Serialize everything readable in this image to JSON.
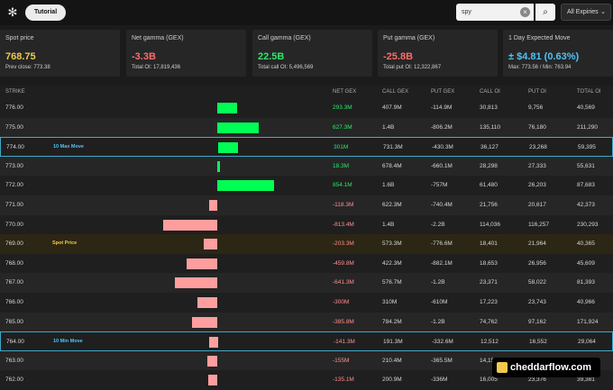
{
  "toolbar": {
    "logo_icon": "gear-icon",
    "tutorial_label": "Tutorial",
    "search_value": "spy",
    "expiry_label": "All Expiries"
  },
  "cards": [
    {
      "label": "Spot price",
      "value": "768.75",
      "sub": "Prev close: 773.38",
      "color": "#f2c94c"
    },
    {
      "label": "Net gamma (GEX)",
      "value": "-3.3B",
      "sub": "Total OI: 17,819,436",
      "color": "#ff6b6b"
    },
    {
      "label": "Call gamma (GEX)",
      "value": "22.5B",
      "sub": "Total call OI: 5,496,569",
      "color": "#2ee66b"
    },
    {
      "label": "Put gamma (GEX)",
      "value": "-25.8B",
      "sub": "Total put OI: 12,322,867",
      "color": "#ff6b6b"
    },
    {
      "label": "1 Day Expected Move",
      "value": "± $4.81 (0.63%)",
      "sub": "Max: 773.56 / Min: 763.94",
      "color": "#4fc3f7"
    }
  ],
  "columns": [
    "STRIKE",
    "NET GEX",
    "CALL GEX",
    "PUT GEX",
    "CALL OI",
    "PUT OI",
    "TOTAL OI"
  ],
  "colors": {
    "positive": "#2ee66b",
    "negative": "#ff8f8f",
    "bar_pos": "#00ff55",
    "bar_neg": "#ff9e9e"
  },
  "rows": [
    {
      "strike": "776.00",
      "tag": "",
      "net": "293.3M",
      "net_m": 293.3,
      "call": "407.9M",
      "put": "-114.9M",
      "call_oi": "30,813",
      "put_oi": "9,756",
      "total_oi": "40,569"
    },
    {
      "strike": "775.00",
      "tag": "",
      "net": "627.3M",
      "net_m": 627.3,
      "call": "1.4B",
      "put": "-806.2M",
      "call_oi": "135,110",
      "put_oi": "76,180",
      "total_oi": "211,290"
    },
    {
      "strike": "774.00",
      "tag": "10 Max Move",
      "tag_color": "#4fc3f7",
      "hl": "blue",
      "net": "301M",
      "net_m": 301,
      "call": "731.3M",
      "put": "-430.3M",
      "call_oi": "36,127",
      "put_oi": "23,268",
      "total_oi": "59,395"
    },
    {
      "strike": "773.00",
      "tag": "",
      "net": "18.3M",
      "net_m": 18.3,
      "call": "678.4M",
      "put": "-660.1M",
      "call_oi": "28,298",
      "put_oi": "27,333",
      "total_oi": "55,631"
    },
    {
      "strike": "772.00",
      "tag": "",
      "net": "854.1M",
      "net_m": 854.1,
      "call": "1.6B",
      "put": "-757M",
      "call_oi": "61,480",
      "put_oi": "26,203",
      "total_oi": "87,683"
    },
    {
      "strike": "771.00",
      "tag": "",
      "net": "-118.3M",
      "net_m": -118.3,
      "call": "622.3M",
      "put": "-740.4M",
      "call_oi": "21,756",
      "put_oi": "20,617",
      "total_oi": "42,373"
    },
    {
      "strike": "770.00",
      "tag": "",
      "net": "-813.4M",
      "net_m": -813.4,
      "call": "1.4B",
      "put": "-2.2B",
      "call_oi": "114,036",
      "put_oi": "116,257",
      "total_oi": "230,293"
    },
    {
      "strike": "769.00",
      "tag": "Spot Price",
      "tag_color": "#f2c94c",
      "hl": "spot",
      "net": "-203.3M",
      "net_m": -203.3,
      "call": "573.3M",
      "put": "-776.6M",
      "call_oi": "18,401",
      "put_oi": "21,964",
      "total_oi": "40,365"
    },
    {
      "strike": "768.00",
      "tag": "",
      "net": "-459.8M",
      "net_m": -459.8,
      "call": "422.3M",
      "put": "-882.1M",
      "call_oi": "18,653",
      "put_oi": "26,956",
      "total_oi": "45,609"
    },
    {
      "strike": "767.00",
      "tag": "",
      "net": "-641.3M",
      "net_m": -641.3,
      "call": "576.7M",
      "put": "-1.2B",
      "call_oi": "23,371",
      "put_oi": "58,022",
      "total_oi": "81,393"
    },
    {
      "strike": "766.00",
      "tag": "",
      "net": "-300M",
      "net_m": -300,
      "call": "310M",
      "put": "-610M",
      "call_oi": "17,223",
      "put_oi": "23,743",
      "total_oi": "40,966"
    },
    {
      "strike": "765.00",
      "tag": "",
      "net": "-385.8M",
      "net_m": -385.8,
      "call": "784.2M",
      "put": "-1.2B",
      "call_oi": "74,762",
      "put_oi": "97,162",
      "total_oi": "171,924"
    },
    {
      "strike": "764.00",
      "tag": "10 Min Move",
      "tag_color": "#4fc3f7",
      "hl": "blue",
      "net": "-141.3M",
      "net_m": -141.3,
      "call": "191.3M",
      "put": "-332.6M",
      "call_oi": "12,512",
      "put_oi": "16,552",
      "total_oi": "29,064"
    },
    {
      "strike": "763.00",
      "tag": "",
      "net": "-155M",
      "net_m": -155,
      "call": "210.4M",
      "put": "-365.5M",
      "call_oi": "14,158",
      "put_oi": "",
      "total_oi": ""
    },
    {
      "strike": "762.00",
      "tag": "",
      "net": "-135.1M",
      "net_m": -135.1,
      "call": "200.9M",
      "put": "-336M",
      "call_oi": "16,005",
      "put_oi": "23,376",
      "total_oi": "39,381"
    }
  ],
  "watermark": {
    "text": "cheddarflow.com",
    "icon": "cheese-icon"
  }
}
